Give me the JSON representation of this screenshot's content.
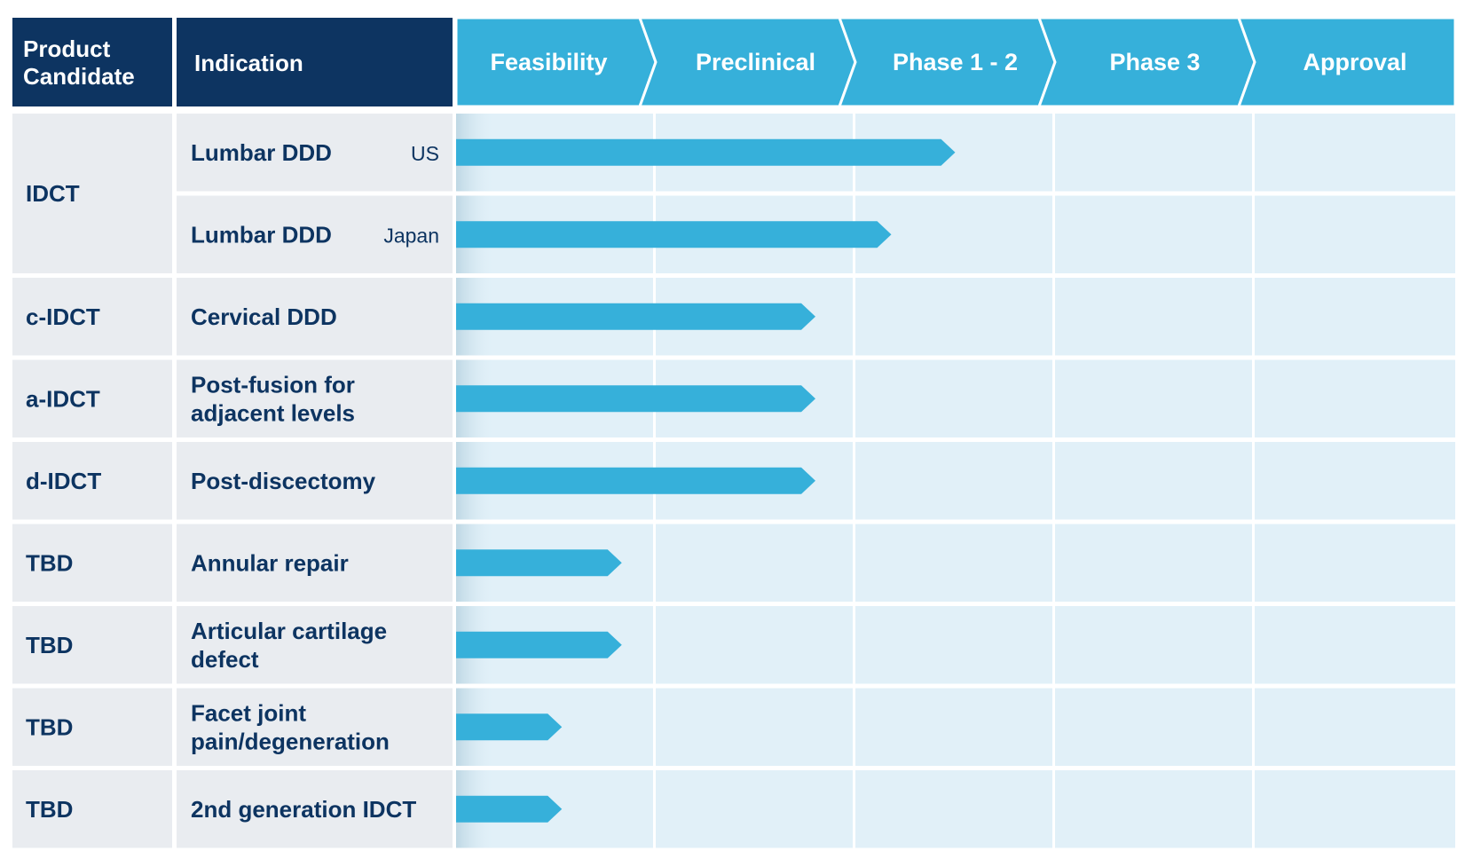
{
  "chart_data": {
    "type": "bar",
    "orientation": "horizontal",
    "header": {
      "product_label": [
        "Product",
        "Candidate"
      ],
      "indication_label": "Indication"
    },
    "stages": [
      "Feasibility",
      "Preclinical",
      "Phase 1 - 2",
      "Phase 3",
      "Approval"
    ],
    "rows": [
      {
        "candidate": "IDCT",
        "indication": [
          "Lumbar DDD"
        ],
        "region": "US",
        "progress": 2.5
      },
      {
        "candidate": "",
        "indication": [
          "Lumbar DDD"
        ],
        "region": "Japan",
        "progress": 2.18
      },
      {
        "candidate": "c-IDCT",
        "indication": [
          "Cervical DDD"
        ],
        "region": "",
        "progress": 1.8
      },
      {
        "candidate": "a-IDCT",
        "indication": [
          "Post-fusion for",
          "adjacent levels"
        ],
        "region": "",
        "progress": 1.8
      },
      {
        "candidate": "d-IDCT",
        "indication": [
          "Post-discectomy"
        ],
        "region": "",
        "progress": 1.8
      },
      {
        "candidate": "TBD",
        "indication": [
          "Annular repair"
        ],
        "region": "",
        "progress": 0.83
      },
      {
        "candidate": "TBD",
        "indication": [
          "Articular cartilage",
          "defect"
        ],
        "region": "",
        "progress": 0.83
      },
      {
        "candidate": "TBD",
        "indication": [
          "Facet joint",
          "pain/degeneration"
        ],
        "region": "",
        "progress": 0.53
      },
      {
        "candidate": "TBD",
        "indication": [
          "2nd generation IDCT"
        ],
        "region": "",
        "progress": 0.53
      }
    ],
    "xlim": [
      0,
      5
    ],
    "colors": {
      "header_dark": "#0d3461",
      "header_stage": "#36b0da",
      "bar": "#36b0da",
      "label_cell": "#e9ecf0",
      "stage_cell": "#e1f0f8",
      "text": "#0d3461"
    }
  }
}
